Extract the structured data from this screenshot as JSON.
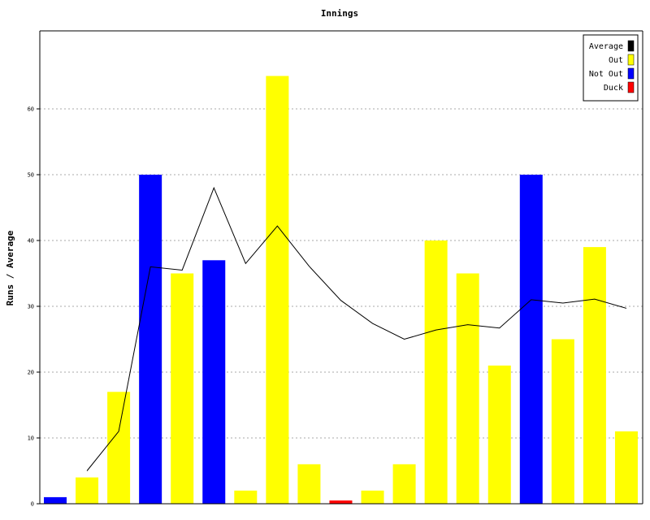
{
  "chart_data": {
    "type": "bar",
    "title": "Innings",
    "xlabel": "",
    "ylabel": "Runs / Average",
    "ylim": [
      0,
      72
    ],
    "yticks": [
      0,
      10,
      20,
      30,
      40,
      50,
      60
    ],
    "grid": "horizontal-dotted",
    "legend_position": "top-right",
    "legend": [
      {
        "name": "Average",
        "color": "#000000"
      },
      {
        "name": "Out",
        "color": "#ffff00"
      },
      {
        "name": "Not Out",
        "color": "#0000ff"
      },
      {
        "name": "Duck",
        "color": "#ff0000"
      }
    ],
    "bars": [
      {
        "value": 1,
        "status": "Not Out"
      },
      {
        "value": 4,
        "status": "Out"
      },
      {
        "value": 17,
        "status": "Out"
      },
      {
        "value": 50,
        "status": "Not Out"
      },
      {
        "value": 35,
        "status": "Out"
      },
      {
        "value": 37,
        "status": "Not Out"
      },
      {
        "value": 2,
        "status": "Out"
      },
      {
        "value": 65,
        "status": "Out"
      },
      {
        "value": 6,
        "status": "Out"
      },
      {
        "value": 0.5,
        "status": "Duck"
      },
      {
        "value": 2,
        "status": "Out"
      },
      {
        "value": 6,
        "status": "Out"
      },
      {
        "value": 40,
        "status": "Out"
      },
      {
        "value": 35,
        "status": "Out"
      },
      {
        "value": 21,
        "status": "Out"
      },
      {
        "value": 50,
        "status": "Not Out"
      },
      {
        "value": 25,
        "status": "Out"
      },
      {
        "value": 39,
        "status": "Out"
      },
      {
        "value": 11,
        "status": "Out"
      }
    ],
    "average_line": {
      "name": "Average",
      "values": [
        null,
        5,
        11,
        36,
        35.5,
        48,
        36.5,
        42.2,
        36.1,
        30.9,
        27.4,
        25,
        26.4,
        27.2,
        26.7,
        31,
        30.5,
        31.1,
        29.7
      ]
    }
  }
}
